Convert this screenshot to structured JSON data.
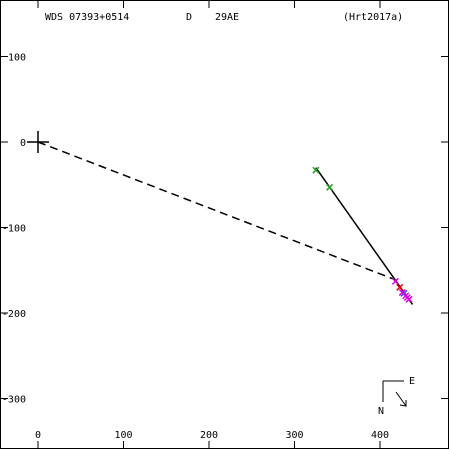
{
  "header": {
    "object_id": "WDS 07393+0514",
    "grade": "D",
    "discoverer": "29AE",
    "reference": "(Hrt2017a)"
  },
  "compass": {
    "east": "E",
    "north": "N"
  },
  "colors": {
    "axis": "#000000",
    "orbit": "#000000",
    "dashed": "#000000",
    "obs_green": "#2e9e2e",
    "obs_magenta": "#e000e0",
    "obs_red": "#e00000",
    "obs_blue": "#3050ff"
  },
  "chart_data": {
    "type": "scatter",
    "title": "",
    "xlabel": "",
    "ylabel": "",
    "xlim": [
      -45,
      480
    ],
    "ylim": [
      -360,
      165
    ],
    "x_ticks": [
      0,
      100,
      200,
      300,
      400
    ],
    "y_ticks": [
      100,
      0,
      -100,
      -200,
      -300
    ],
    "primary": {
      "x": 0,
      "y": 0
    },
    "dashed_line": {
      "from": [
        0,
        0
      ],
      "to": [
        415,
        -160
      ]
    },
    "orbit_segment": {
      "from": [
        325,
        -30
      ],
      "to": [
        438,
        -190
      ]
    },
    "observations": [
      {
        "x": 325,
        "y": -33,
        "color": "green"
      },
      {
        "x": 341,
        "y": -53,
        "color": "green"
      },
      {
        "x": 418,
        "y": -163,
        "color": "magenta"
      },
      {
        "x": 423,
        "y": -170,
        "color": "red"
      },
      {
        "x": 428,
        "y": -177,
        "color": "blue"
      },
      {
        "x": 430,
        "y": -180,
        "color": "magenta"
      },
      {
        "x": 432,
        "y": -182,
        "color": "magenta"
      },
      {
        "x": 434,
        "y": -184,
        "color": "magenta"
      },
      {
        "x": 426,
        "y": -176,
        "color": "magenta"
      }
    ]
  }
}
